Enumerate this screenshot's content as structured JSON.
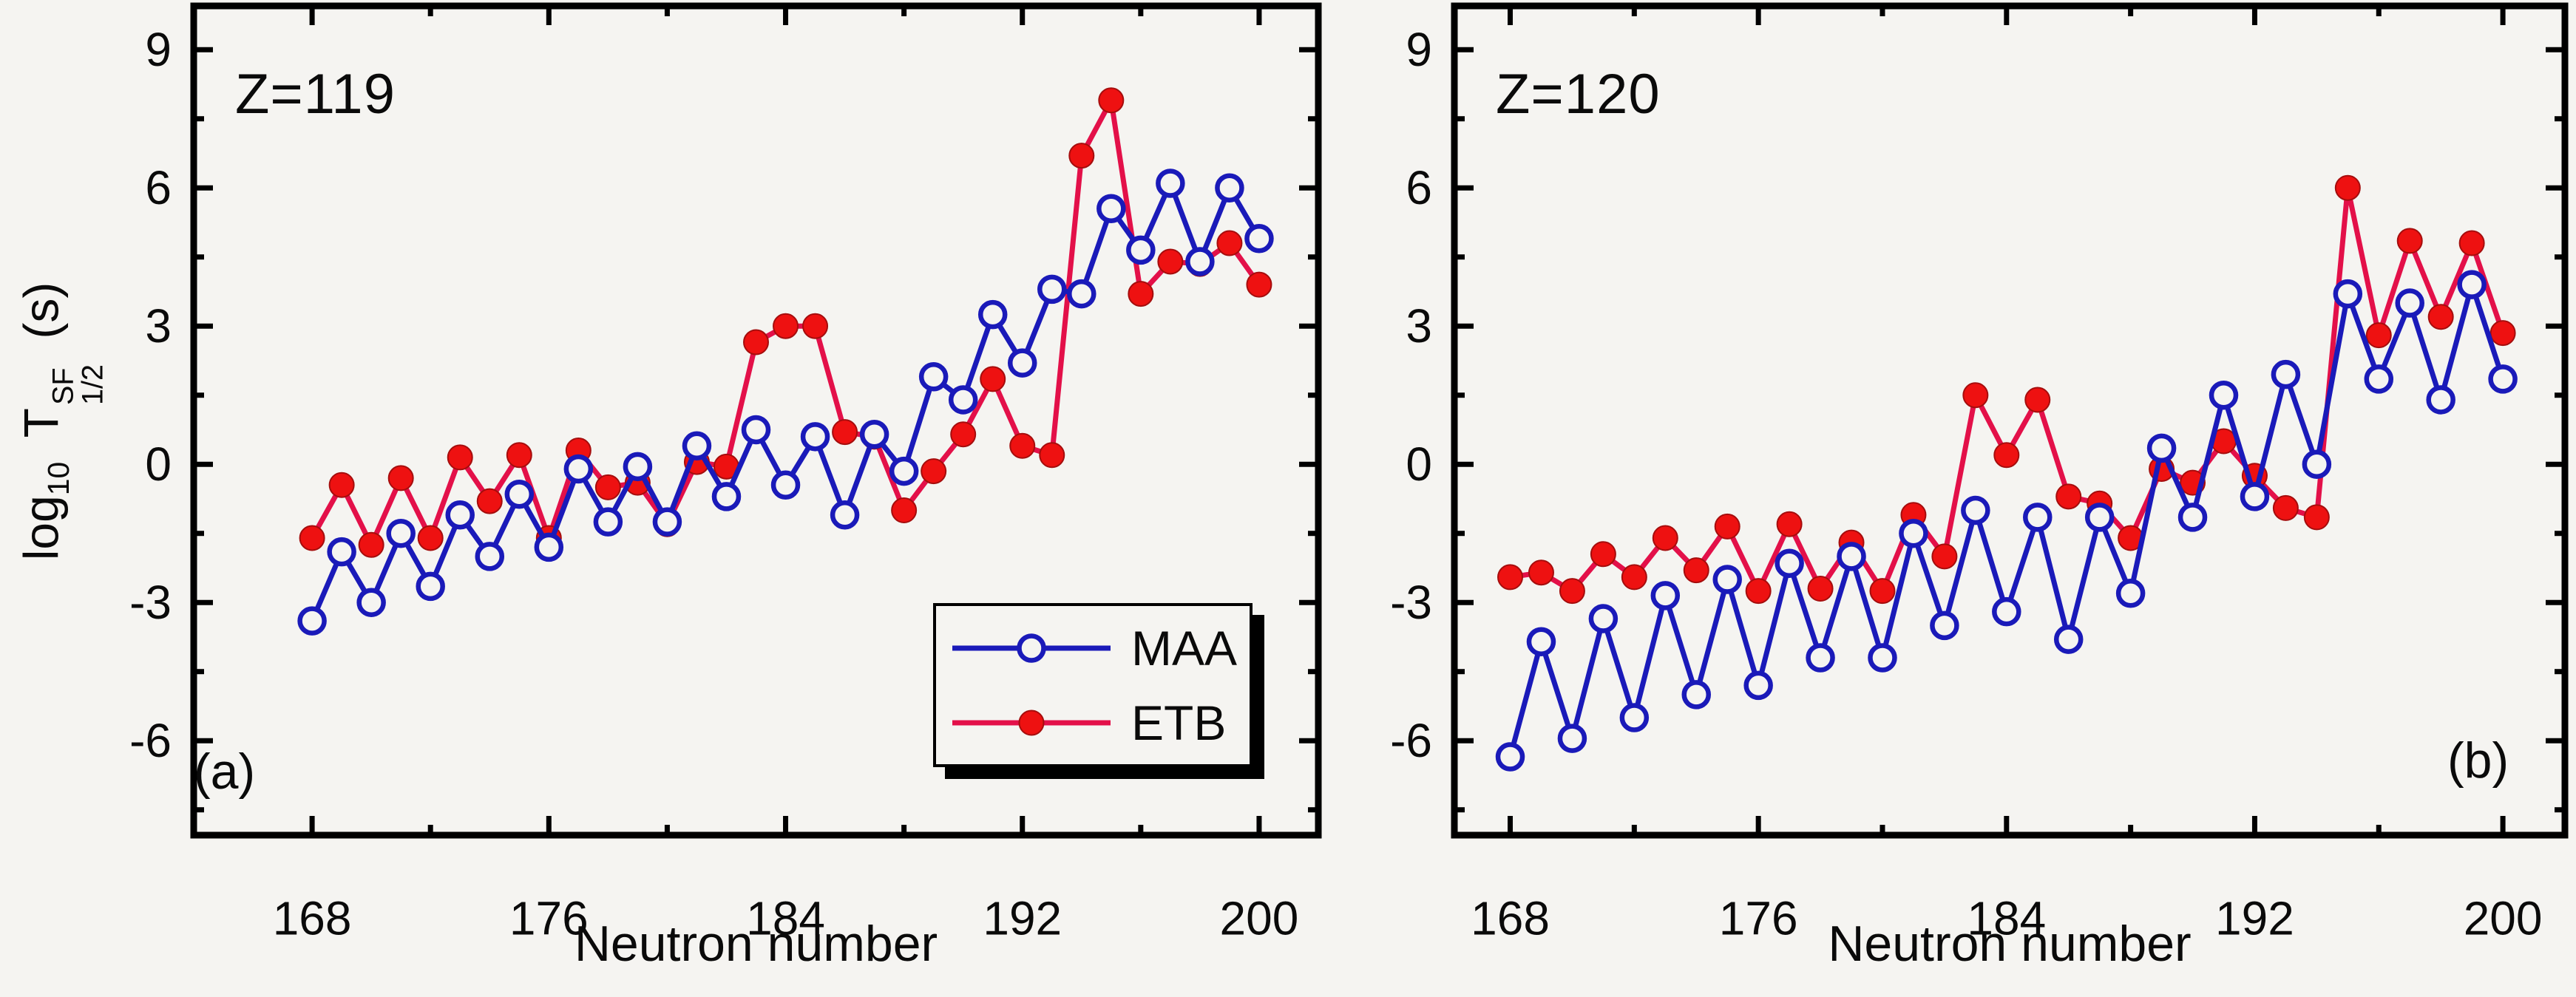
{
  "figure": {
    "background": "#f5f4f1",
    "axis_color": "#000000",
    "text_color": "#0a0a0a",
    "ylabel": {
      "word": "log",
      "word_sub": "10",
      "var": "T",
      "var_sup": "SF",
      "var_sub": "1/2",
      "units": "(s)"
    }
  },
  "legend": {
    "items": [
      {
        "label": "MAA",
        "color": "#1a1ab9",
        "marker": "open-circle"
      },
      {
        "label": "ETB",
        "color": "#e31049",
        "marker": "filled-circle",
        "marker_fill": "#ee1111"
      }
    ]
  },
  "chart_data": [
    {
      "type": "line",
      "panel": "a",
      "title": "Z=119",
      "corner_label": "(a)",
      "xlabel": "Neutron number",
      "ylabel": "log10 T_1/2^SF (s)",
      "xlim": [
        164,
        202
      ],
      "ylim": [
        -8.05,
        9.95
      ],
      "grid": false,
      "xticks_major": [
        168,
        176,
        184,
        192,
        200
      ],
      "xticks_minor": [
        172,
        180,
        188,
        196
      ],
      "yticks_major": [
        9,
        6,
        3,
        0,
        -3,
        -6
      ],
      "yticks_minor": [
        7.5,
        4.5,
        1.5,
        -1.5,
        -4.5,
        -7.5
      ],
      "x": [
        168,
        169,
        170,
        171,
        172,
        173,
        174,
        175,
        176,
        177,
        178,
        179,
        180,
        181,
        182,
        183,
        184,
        185,
        186,
        187,
        188,
        189,
        190,
        191,
        192,
        193,
        194,
        195,
        196,
        197,
        198,
        199,
        200
      ],
      "series": [
        {
          "name": "ETB",
          "color": "#e31049",
          "marker": "filled",
          "values": [
            -1.6,
            -0.45,
            -1.75,
            -0.3,
            -1.6,
            0.15,
            -0.8,
            0.2,
            -1.6,
            0.3,
            -0.5,
            -0.4,
            -1.3,
            0.05,
            -0.05,
            2.65,
            3.0,
            3.0,
            0.7,
            0.6,
            -1.0,
            -0.15,
            0.65,
            1.85,
            0.4,
            0.2,
            6.7,
            7.9,
            3.7,
            4.4,
            4.35,
            4.8,
            3.9
          ]
        },
        {
          "name": "MAA",
          "color": "#1a1ab9",
          "marker": "open",
          "values": [
            -3.4,
            -1.9,
            -3.0,
            -1.5,
            -2.65,
            -1.1,
            -2.0,
            -0.65,
            -1.8,
            -0.1,
            -1.25,
            -0.05,
            -1.25,
            0.4,
            -0.7,
            0.75,
            -0.45,
            0.6,
            -1.1,
            0.65,
            -0.15,
            1.9,
            1.4,
            3.25,
            2.2,
            3.8,
            3.7,
            5.55,
            4.65,
            6.1,
            4.4,
            6.0,
            4.9
          ]
        }
      ],
      "legend_in_panel": true,
      "legend_entries": [
        "MAA",
        "ETB"
      ]
    },
    {
      "type": "line",
      "panel": "b",
      "title": "Z=120",
      "corner_label": "(b)",
      "xlabel": "Neutron number",
      "ylabel": "log10 T_1/2^SF (s)",
      "xlim": [
        166.2,
        202
      ],
      "ylim": [
        -8.05,
        9.95
      ],
      "grid": false,
      "xticks_major": [
        168,
        176,
        184,
        192,
        200
      ],
      "xticks_minor": [
        172,
        180,
        188,
        196
      ],
      "yticks_major": [
        9,
        6,
        3,
        0,
        -3,
        -6
      ],
      "yticks_minor": [
        7.5,
        4.5,
        1.5,
        -1.5,
        -4.5,
        -7.5
      ],
      "x": [
        168,
        169,
        170,
        171,
        172,
        173,
        174,
        175,
        176,
        177,
        178,
        179,
        180,
        181,
        182,
        183,
        184,
        185,
        186,
        187,
        188,
        189,
        190,
        191,
        192,
        193,
        194,
        195,
        196,
        197,
        198,
        199,
        200
      ],
      "series": [
        {
          "name": "ETB",
          "color": "#e31049",
          "marker": "filled",
          "values": [
            -2.45,
            -2.35,
            -2.75,
            -1.95,
            -2.45,
            -1.6,
            -2.3,
            -1.35,
            -2.75,
            -1.3,
            -2.7,
            -1.7,
            -2.75,
            -1.1,
            -2.0,
            1.5,
            0.2,
            1.4,
            -0.7,
            -0.85,
            -1.6,
            -0.1,
            -0.4,
            0.5,
            -0.25,
            -0.95,
            -1.15,
            6.0,
            2.8,
            4.85,
            3.2,
            4.8,
            2.85
          ]
        },
        {
          "name": "MAA",
          "color": "#1a1ab9",
          "marker": "open",
          "values": [
            -6.35,
            -3.85,
            -5.95,
            -3.35,
            -5.5,
            -2.85,
            -5.0,
            -2.5,
            -4.8,
            -2.15,
            -4.2,
            -2.0,
            -4.2,
            -1.5,
            -3.5,
            -1.0,
            -3.2,
            -1.15,
            -3.8,
            -1.15,
            -2.8,
            0.35,
            -1.15,
            1.5,
            -0.7,
            1.95,
            0.0,
            3.7,
            1.85,
            3.5,
            1.4,
            3.9,
            1.85
          ]
        }
      ],
      "legend_in_panel": false
    }
  ]
}
